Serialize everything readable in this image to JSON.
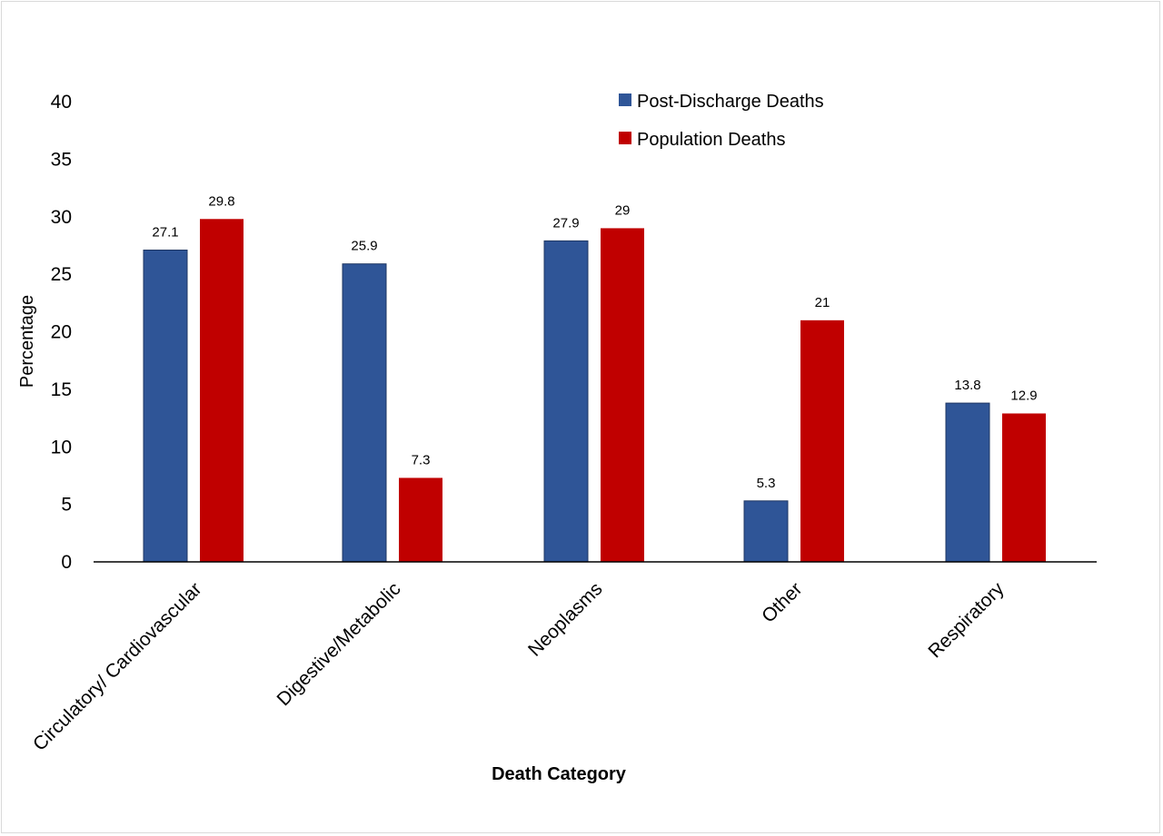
{
  "chart_data": {
    "type": "bar",
    "title": "",
    "xlabel": "Death Category",
    "ylabel": "Percentage",
    "ylim": [
      0,
      40
    ],
    "yticks": [
      0,
      5,
      10,
      15,
      20,
      25,
      30,
      35,
      40
    ],
    "grid": false,
    "legend_position": "top-right",
    "categories": [
      "Circulatory/ Cardiovascular",
      "Digestive/Metabolic",
      "Neoplasms",
      "Other",
      "Respiratory"
    ],
    "series": [
      {
        "name": "Post-Discharge Deaths",
        "color": "#2F5597",
        "values": [
          27.1,
          25.9,
          27.9,
          5.3,
          13.8
        ],
        "labels": [
          "27.1",
          "25.9",
          "27.9",
          "5.3",
          "13.8"
        ]
      },
      {
        "name": "Population Deaths",
        "color": "#C00000",
        "values": [
          29.8,
          7.3,
          29,
          21,
          12.9
        ],
        "labels": [
          "29.8",
          "7.3",
          "29",
          "21",
          "12.9"
        ]
      }
    ]
  }
}
